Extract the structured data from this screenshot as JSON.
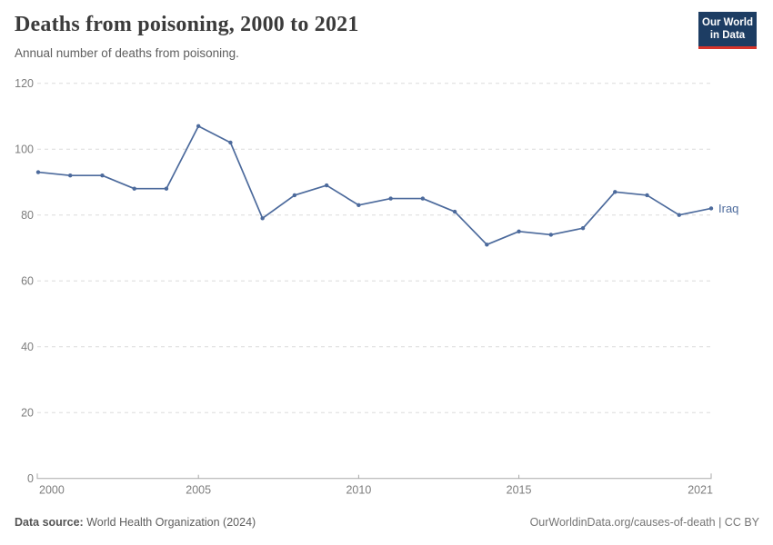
{
  "header": {
    "title": "Deaths from poisoning, 2000 to 2021",
    "subtitle": "Annual number of deaths from poisoning.",
    "logo": {
      "line1": "Our World",
      "line2": "in Data",
      "bg_color": "#1d3d63",
      "accent_color": "#d7342b"
    }
  },
  "chart_data": {
    "type": "line",
    "title": "Deaths from poisoning, 2000 to 2021",
    "subtitle": "Annual number of deaths from poisoning.",
    "xlabel": "",
    "ylabel": "",
    "x": [
      2000,
      2001,
      2002,
      2003,
      2004,
      2005,
      2006,
      2007,
      2008,
      2009,
      2010,
      2011,
      2012,
      2013,
      2014,
      2015,
      2016,
      2017,
      2018,
      2019,
      2020,
      2021
    ],
    "series": [
      {
        "name": "Iraq",
        "color": "#4c6a9c",
        "values": [
          93,
          92,
          92,
          88,
          88,
          107,
          102,
          79,
          86,
          89,
          83,
          85,
          85,
          81,
          71,
          75,
          74,
          76,
          87,
          86,
          80,
          82
        ]
      }
    ],
    "xticks": [
      2000,
      2005,
      2010,
      2015,
      2021
    ],
    "yticks": [
      0,
      20,
      40,
      60,
      80,
      100,
      120
    ],
    "xlim": [
      2000,
      2021
    ],
    "ylim": [
      0,
      120
    ],
    "grid": "horizontal dashed",
    "legend": "end-of-line entity label",
    "marker": "circle"
  },
  "footer": {
    "source_label": "Data source:",
    "source_value": "World Health Organization (2024)",
    "credit": "OurWorldinData.org/causes-of-death | CC BY"
  }
}
